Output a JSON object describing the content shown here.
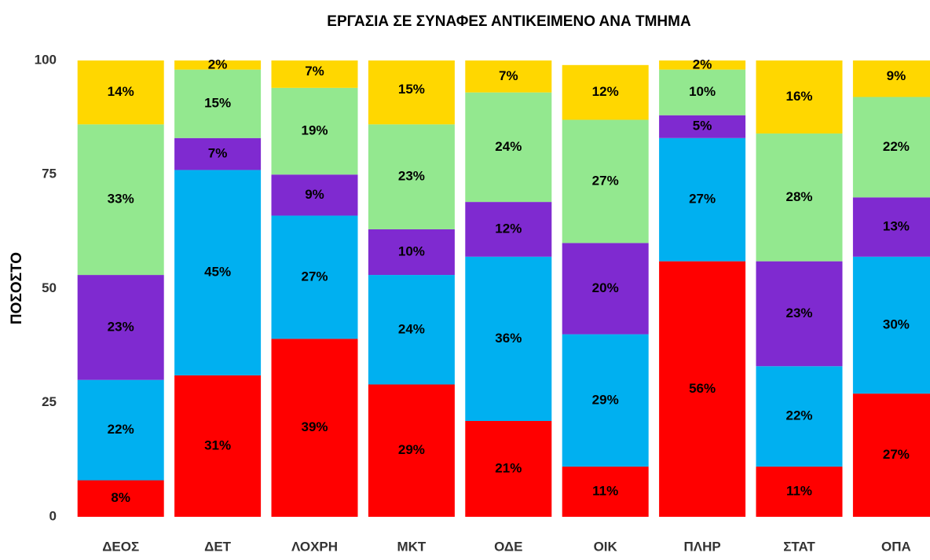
{
  "chart_data": {
    "type": "stacked_bar",
    "title": "ΕΡΓΑΣΙΑ ΣΕ ΣΥΝΑΦΕΣ ΑΝΤΙΚΕΙΜΕΝΟ ΑΝΑ ΤΜΗΜΑ",
    "y_label": "ΠΟΣΟΣΤΟ",
    "categories": [
      "ΔΕΟΣ",
      "ΔΕΤ",
      "ΛΟΧΡΗ",
      "ΜΚΤ",
      "ΟΔΕ",
      "ΟΙΚ",
      "ΠΛΗΡ",
      "ΣΤΑΤ",
      "ΟΠΑ"
    ],
    "series": [
      {
        "color": "#ff0000",
        "values": [
          8,
          31,
          39,
          29,
          21,
          11,
          56,
          11,
          27
        ],
        "value_labels": [
          "8%",
          "31%",
          "39%",
          "29%",
          "21%",
          "11%",
          "56%",
          "11%",
          "27%"
        ]
      },
      {
        "color": "#00b0f0",
        "values": [
          22,
          45,
          27,
          24,
          36,
          29,
          27,
          22,
          30
        ],
        "value_labels": [
          "22%",
          "45%",
          "27%",
          "24%",
          "36%",
          "29%",
          "27%",
          "22%",
          "30%"
        ]
      },
      {
        "color": "#7f2ad0",
        "values": [
          23,
          7,
          9,
          10,
          12,
          20,
          5,
          23,
          13
        ],
        "value_labels": [
          "23%",
          "7%",
          "9%",
          "10%",
          "12%",
          "20%",
          "5%",
          "23%",
          "13%"
        ]
      },
      {
        "color": "#93e88f",
        "values": [
          33,
          15,
          19,
          23,
          24,
          27,
          10,
          28,
          22
        ],
        "value_labels": [
          "33%",
          "15%",
          "19%",
          "23%",
          "24%",
          "27%",
          "10%",
          "28%",
          "22%"
        ]
      },
      {
        "color": "#ffd700",
        "values": [
          14,
          2,
          7,
          15,
          7,
          12,
          2,
          16,
          9
        ],
        "value_labels": [
          "14%",
          "2%",
          "7%",
          "15%",
          "7%",
          "12%",
          "2%",
          "16%",
          "9%"
        ]
      }
    ],
    "ylim": [
      0,
      100
    ],
    "yticks": [
      0,
      25,
      50,
      75,
      100
    ]
  }
}
